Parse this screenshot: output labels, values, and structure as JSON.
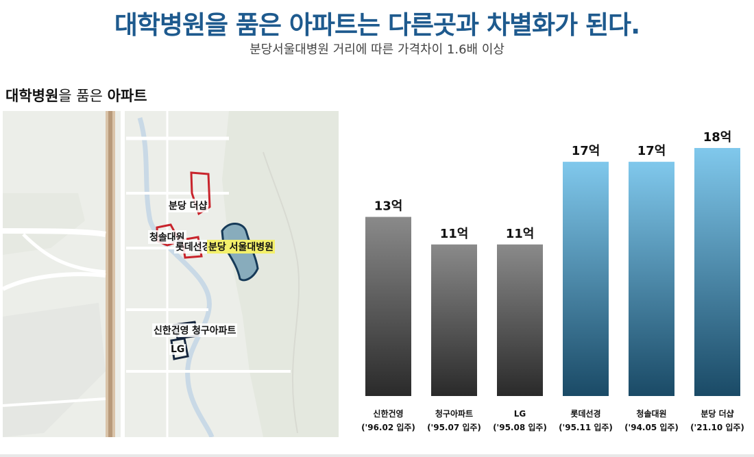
{
  "header": {
    "title": "대학병원을 품은 아파트는 다른곳과 차별화가 된다.",
    "subtitle": "분당서울대병원 거리에 따른 가격차이 1.6배 이상"
  },
  "section": {
    "title_bold1": "대학병원",
    "title_normal": "을 품은 ",
    "title_bold2": "아파트"
  },
  "map": {
    "labels": {
      "thesharp": "분당 더샵",
      "cheongsol": "청솔대원",
      "lotte": "롯데선경",
      "hospital": "분당 서울대병원",
      "shinhan": "신한건영",
      "cheonggu": "청구아파트",
      "lg": "LG"
    }
  },
  "colors": {
    "headline": "#1e5a8e",
    "gray_top": "#8a8a8a",
    "gray_bottom": "#2a2a2a",
    "blue_top": "#80c8ec",
    "blue_bottom": "#1a4a66"
  },
  "chart_data": {
    "type": "bar",
    "categories": [
      "신한건영",
      "청구아파트",
      "LG",
      "롯데선경",
      "청솔대원",
      "분당 더샵"
    ],
    "sublabels": [
      "('96.02 입주)",
      "('95.07 입주)",
      "('95.08 입주)",
      "('95.11 입주)",
      "('94.05 입주)",
      "('21.10 입주)"
    ],
    "values": [
      13,
      11,
      11,
      17,
      17,
      18
    ],
    "value_labels": [
      "13억",
      "11억",
      "11억",
      "17억",
      "17억",
      "18억"
    ],
    "groups": [
      "gray",
      "gray",
      "gray",
      "blue",
      "blue",
      "blue"
    ],
    "ylim": [
      0,
      18
    ]
  }
}
